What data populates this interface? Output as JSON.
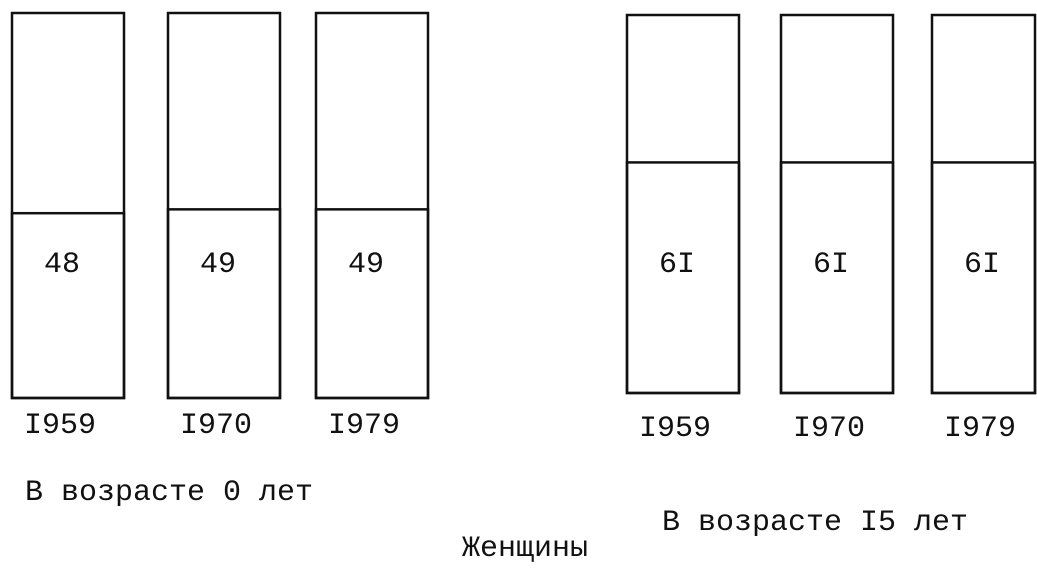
{
  "title": "Женщины",
  "chart_data": [
    {
      "type": "stacked-box",
      "subtitle": "В возрасте 0 лет",
      "categories": [
        "I959",
        "I970",
        "I979"
      ],
      "values": [
        48,
        49,
        49
      ],
      "ylim": [
        0,
        100
      ]
    },
    {
      "type": "stacked-box",
      "subtitle": "В возрасте I5 лет",
      "categories": [
        "I959",
        "I970",
        "I979"
      ],
      "values": [
        61,
        61,
        61
      ],
      "value_labels": [
        "6I",
        "6I",
        "6I"
      ],
      "ylim": [
        0,
        100
      ]
    }
  ]
}
